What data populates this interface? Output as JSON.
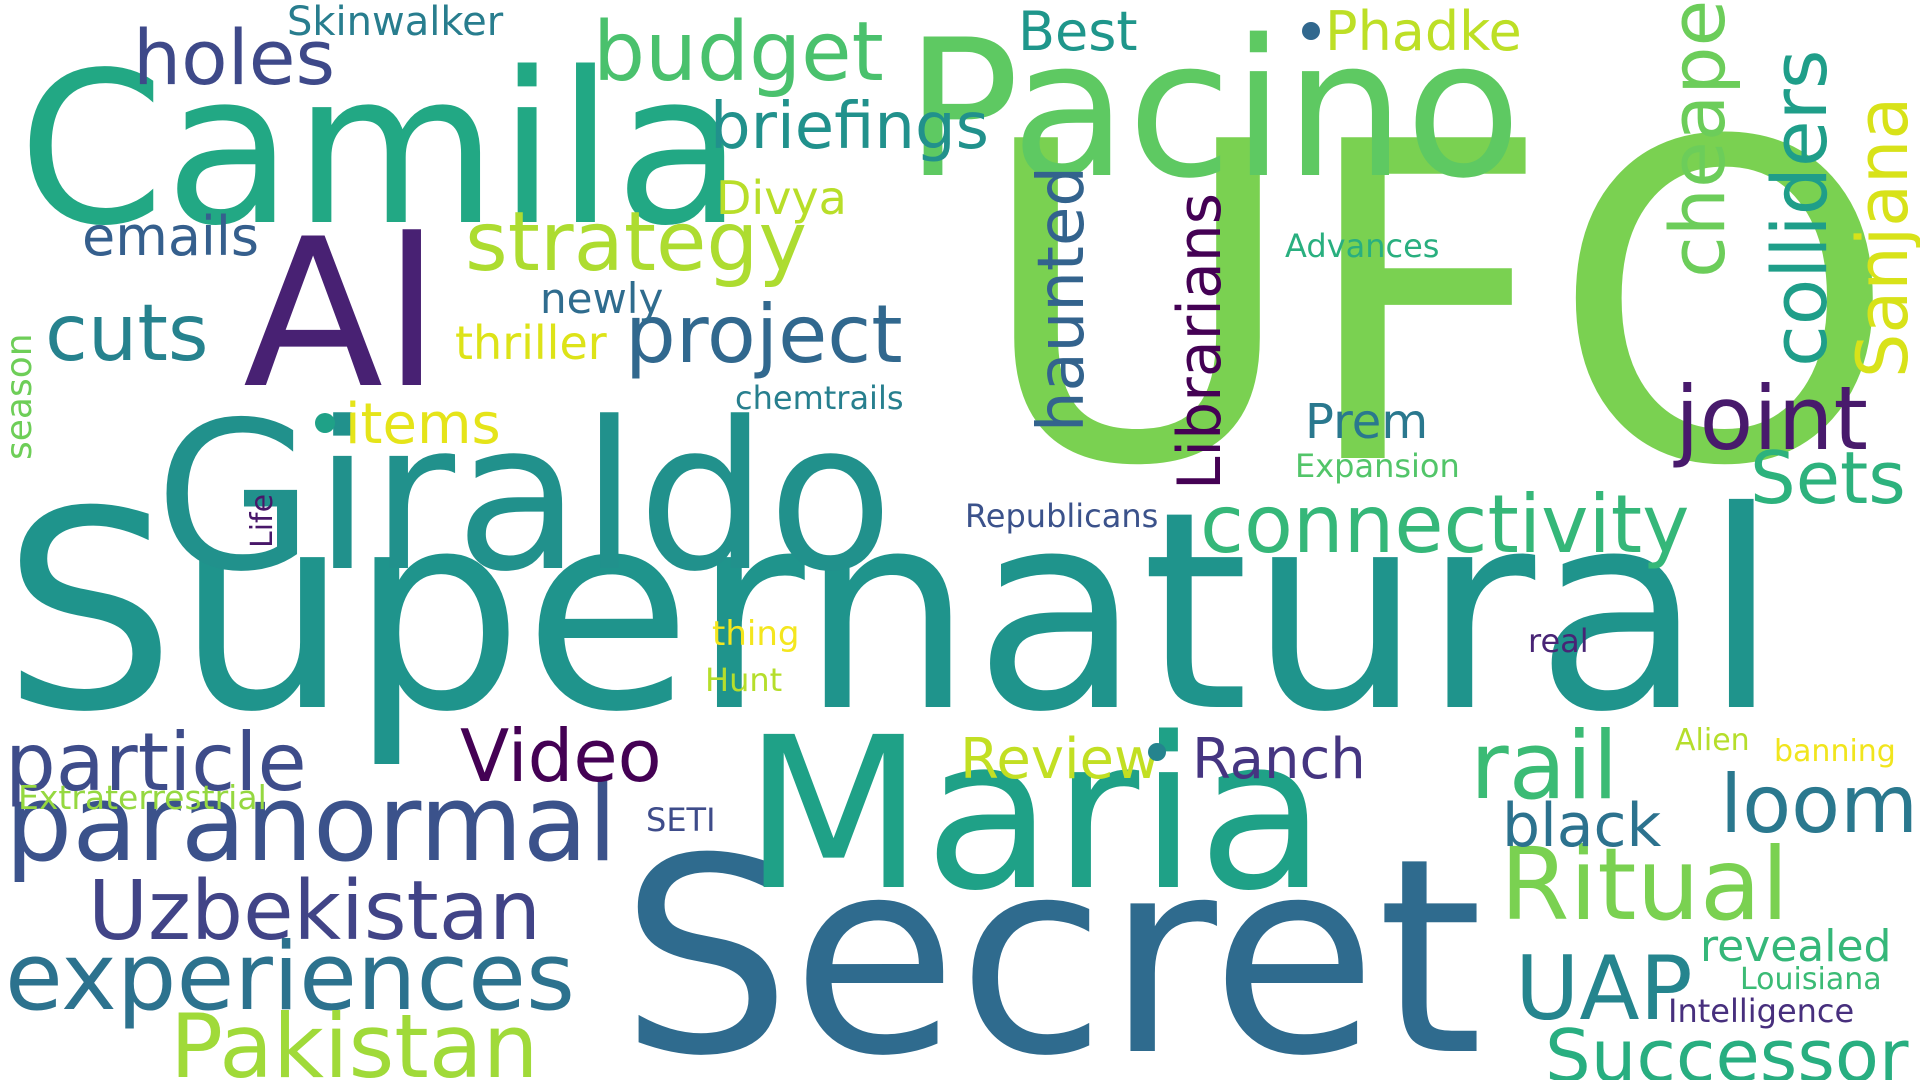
{
  "words": [
    {
      "text": "UFO",
      "color": "#7ad151"
    },
    {
      "text": "Supernatural",
      "color": "#1f948c"
    },
    {
      "text": "Secret",
      "color": "#2f6b8e"
    },
    {
      "text": "Maria",
      "color": "#1fa187"
    },
    {
      "text": "Camila",
      "color": "#22a884"
    },
    {
      "text": "Giraldo",
      "color": "#21918c"
    },
    {
      "text": "Pacino",
      "color": "#5ec962"
    },
    {
      "text": "Al",
      "color": "#482173"
    },
    {
      "text": "paranormal",
      "color": "#3b528b"
    },
    {
      "text": "experiences",
      "color": "#2c728e"
    },
    {
      "text": "Pakistan",
      "color": "#a0da39"
    },
    {
      "text": "Uzbekistan",
      "color": "#414487"
    },
    {
      "text": "particle",
      "color": "#3e4c8a"
    },
    {
      "text": "Video",
      "color": "#440154"
    },
    {
      "text": "connectivity",
      "color": "#35b779"
    },
    {
      "text": "project",
      "color": "#31688e"
    },
    {
      "text": "strategy",
      "color": "#addc30"
    },
    {
      "text": "budget",
      "color": "#4ac16d"
    },
    {
      "text": "holes",
      "color": "#3e4989"
    },
    {
      "text": "cuts",
      "color": "#26828e"
    },
    {
      "text": "Ritual",
      "color": "#7ad151"
    },
    {
      "text": "Successor",
      "color": "#28ae80"
    },
    {
      "text": "UAP",
      "color": "#25858e"
    },
    {
      "text": "rail",
      "color": "#3bbb75"
    },
    {
      "text": "loom",
      "color": "#2a788e"
    },
    {
      "text": "joint",
      "color": "#481a6c"
    },
    {
      "text": "Sets",
      "color": "#2db27d"
    },
    {
      "text": "black",
      "color": "#2c728e"
    },
    {
      "text": "cheaper",
      "color": "#6ccd5a"
    },
    {
      "text": "colliders",
      "color": "#1f9e89"
    },
    {
      "text": "Sanjana",
      "color": "#d8e219"
    },
    {
      "text": "haunted",
      "color": "#33638d"
    },
    {
      "text": "Librarians",
      "color": "#440154"
    },
    {
      "text": "Phadke",
      "color": "#bddf26"
    },
    {
      "text": "Best",
      "color": "#1f968b"
    },
    {
      "text": "briefings",
      "color": "#21918c"
    },
    {
      "text": "Divya",
      "color": "#b8de29"
    },
    {
      "text": "emails",
      "color": "#355f8d"
    },
    {
      "text": "newly",
      "color": "#2f6c8e"
    },
    {
      "text": "thriller",
      "color": "#dde318"
    },
    {
      "text": "items",
      "color": "#e5e419"
    },
    {
      "text": "Review",
      "color": "#c2df23"
    },
    {
      "text": "Ranch",
      "color": "#453581"
    },
    {
      "text": "Prem",
      "color": "#2a788e"
    },
    {
      "text": "revealed",
      "color": "#35b779"
    },
    {
      "text": "Skinwalker",
      "color": "#287d8e"
    },
    {
      "text": "Extraterrestrial",
      "color": "#95d840"
    },
    {
      "text": "Intelligence",
      "color": "#472f7d"
    },
    {
      "text": "Louisiana",
      "color": "#3bbb75"
    },
    {
      "text": "Republicans",
      "color": "#3b528b"
    },
    {
      "text": "Advances",
      "color": "#29af7f"
    },
    {
      "text": "Expansion",
      "color": "#52c569"
    },
    {
      "text": "chemtrails",
      "color": "#277f8e"
    },
    {
      "text": "Alien",
      "color": "#b5de2b"
    },
    {
      "text": "banning",
      "color": "#f1e51d"
    },
    {
      "text": "thing",
      "color": "#f4e61e"
    },
    {
      "text": "Hunt",
      "color": "#b5de2b"
    },
    {
      "text": "SETI",
      "color": "#3e4c8a"
    },
    {
      "text": "real",
      "color": "#482475"
    },
    {
      "text": "season",
      "color": "#6ece58"
    },
    {
      "text": "Life",
      "color": "#481769"
    }
  ],
  "dots": [
    {
      "color": "#1fa187"
    },
    {
      "color": "#25848e"
    },
    {
      "color": "#31688e"
    }
  ]
}
